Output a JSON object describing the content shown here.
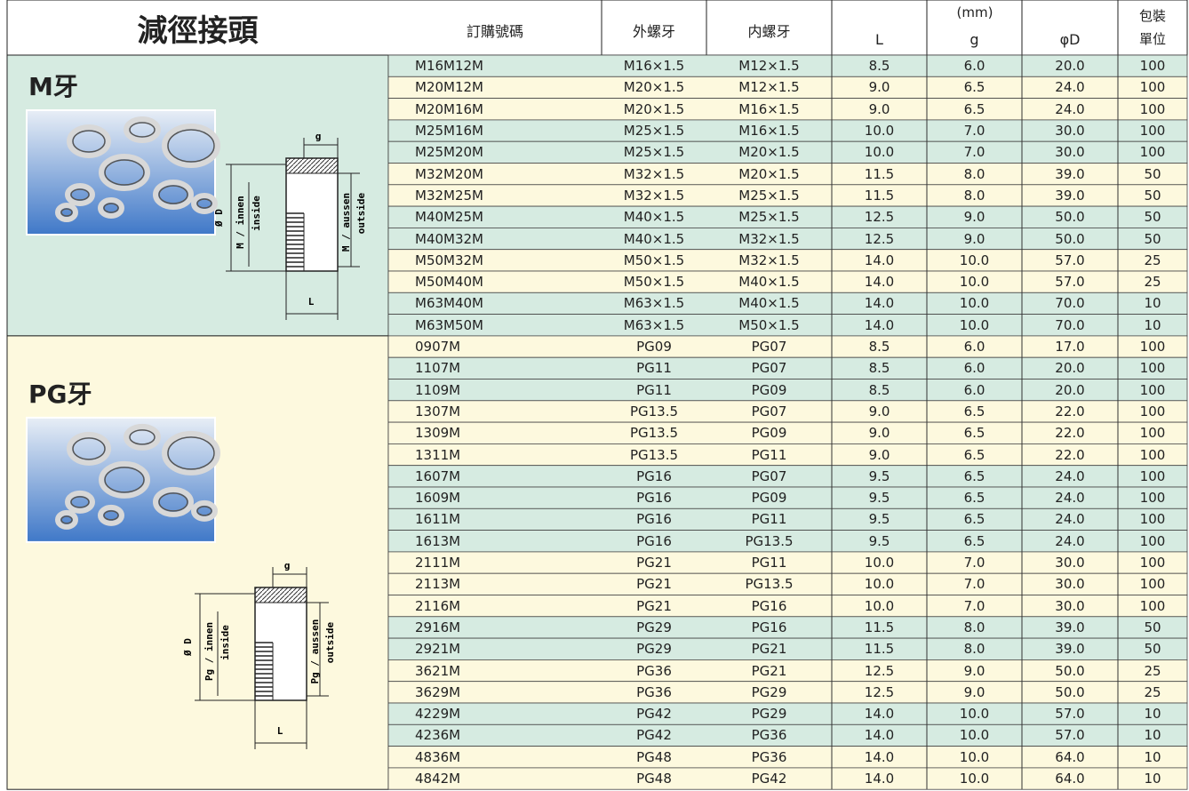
{
  "header": {
    "title": "減徑接頭",
    "columns": [
      "訂購號碼",
      "外螺牙",
      "内螺牙"
    ],
    "unit": "(mm)",
    "dims": [
      "L",
      "g",
      "φD"
    ],
    "pack": [
      "包裝",
      "單位"
    ]
  },
  "sections": [
    {
      "title": "M牙",
      "diagram": {
        "g": "g",
        "L": "L",
        "d": "Ø D",
        "inner": [
          "M / innen",
          "inside"
        ],
        "outer": [
          "M / aussen",
          "outside"
        ]
      },
      "rows": [
        [
          "M16M12M",
          "M16×1.5",
          "M12×1.5",
          "8.5",
          "6.0",
          "20.0",
          "100"
        ],
        [
          "M20M12M",
          "M20×1.5",
          "M12×1.5",
          "9.0",
          "6.5",
          "24.0",
          "100"
        ],
        [
          "M20M16M",
          "M20×1.5",
          "M16×1.5",
          "9.0",
          "6.5",
          "24.0",
          "100"
        ],
        [
          "M25M16M",
          "M25×1.5",
          "M16×1.5",
          "10.0",
          "7.0",
          "30.0",
          "100"
        ],
        [
          "M25M20M",
          "M25×1.5",
          "M20×1.5",
          "10.0",
          "7.0",
          "30.0",
          "100"
        ],
        [
          "M32M20M",
          "M32×1.5",
          "M20×1.5",
          "11.5",
          "8.0",
          "39.0",
          "50"
        ],
        [
          "M32M25M",
          "M32×1.5",
          "M25×1.5",
          "11.5",
          "8.0",
          "39.0",
          "50"
        ],
        [
          "M40M25M",
          "M40×1.5",
          "M25×1.5",
          "12.5",
          "9.0",
          "50.0",
          "50"
        ],
        [
          "M40M32M",
          "M40×1.5",
          "M32×1.5",
          "12.5",
          "9.0",
          "50.0",
          "50"
        ],
        [
          "M50M32M",
          "M50×1.5",
          "M32×1.5",
          "14.0",
          "10.0",
          "57.0",
          "25"
        ],
        [
          "M50M40M",
          "M50×1.5",
          "M40×1.5",
          "14.0",
          "10.0",
          "57.0",
          "25"
        ],
        [
          "M63M40M",
          "M63×1.5",
          "M40×1.5",
          "14.0",
          "10.0",
          "70.0",
          "10"
        ],
        [
          "M63M50M",
          "M63×1.5",
          "M50×1.5",
          "14.0",
          "10.0",
          "70.0",
          "10"
        ]
      ]
    },
    {
      "title": "PG牙",
      "diagram": {
        "g": "g",
        "L": "L",
        "d": "Ø D",
        "inner": [
          "Pg / innen",
          "inside"
        ],
        "outer": [
          "Pg / aussen",
          "outside"
        ]
      },
      "rows": [
        [
          "0907M",
          "PG09",
          "PG07",
          "8.5",
          "6.0",
          "17.0",
          "100"
        ],
        [
          "1107M",
          "PG11",
          "PG07",
          "8.5",
          "6.0",
          "20.0",
          "100"
        ],
        [
          "1109M",
          "PG11",
          "PG09",
          "8.5",
          "6.0",
          "20.0",
          "100"
        ],
        [
          "1307M",
          "PG13.5",
          "PG07",
          "9.0",
          "6.5",
          "22.0",
          "100"
        ],
        [
          "1309M",
          "PG13.5",
          "PG09",
          "9.0",
          "6.5",
          "22.0",
          "100"
        ],
        [
          "1311M",
          "PG13.5",
          "PG11",
          "9.0",
          "6.5",
          "22.0",
          "100"
        ],
        [
          "1607M",
          "PG16",
          "PG07",
          "9.5",
          "6.5",
          "24.0",
          "100"
        ],
        [
          "1609M",
          "PG16",
          "PG09",
          "9.5",
          "6.5",
          "24.0",
          "100"
        ],
        [
          "1611M",
          "PG16",
          "PG11",
          "9.5",
          "6.5",
          "24.0",
          "100"
        ],
        [
          "1613M",
          "PG16",
          "PG13.5",
          "9.5",
          "6.5",
          "24.0",
          "100"
        ],
        [
          "2111M",
          "PG21",
          "PG11",
          "10.0",
          "7.0",
          "30.0",
          "100"
        ],
        [
          "2113M",
          "PG21",
          "PG13.5",
          "10.0",
          "7.0",
          "30.0",
          "100"
        ],
        [
          "2116M",
          "PG21",
          "PG16",
          "10.0",
          "7.0",
          "30.0",
          "100"
        ],
        [
          "2916M",
          "PG29",
          "PG16",
          "11.5",
          "8.0",
          "39.0",
          "50"
        ],
        [
          "2921M",
          "PG29",
          "PG21",
          "11.5",
          "8.0",
          "39.0",
          "50"
        ],
        [
          "3621M",
          "PG36",
          "PG21",
          "12.5",
          "9.0",
          "50.0",
          "25"
        ],
        [
          "3629M",
          "PG36",
          "PG29",
          "12.5",
          "9.0",
          "50.0",
          "25"
        ],
        [
          "4229M",
          "PG42",
          "PG29",
          "14.0",
          "10.0",
          "57.0",
          "10"
        ],
        [
          "4236M",
          "PG42",
          "PG36",
          "14.0",
          "10.0",
          "57.0",
          "10"
        ],
        [
          "4836M",
          "PG48",
          "PG36",
          "14.0",
          "10.0",
          "64.0",
          "10"
        ],
        [
          "4842M",
          "PG48",
          "PG42",
          "14.0",
          "10.0",
          "64.0",
          "10"
        ]
      ]
    }
  ]
}
